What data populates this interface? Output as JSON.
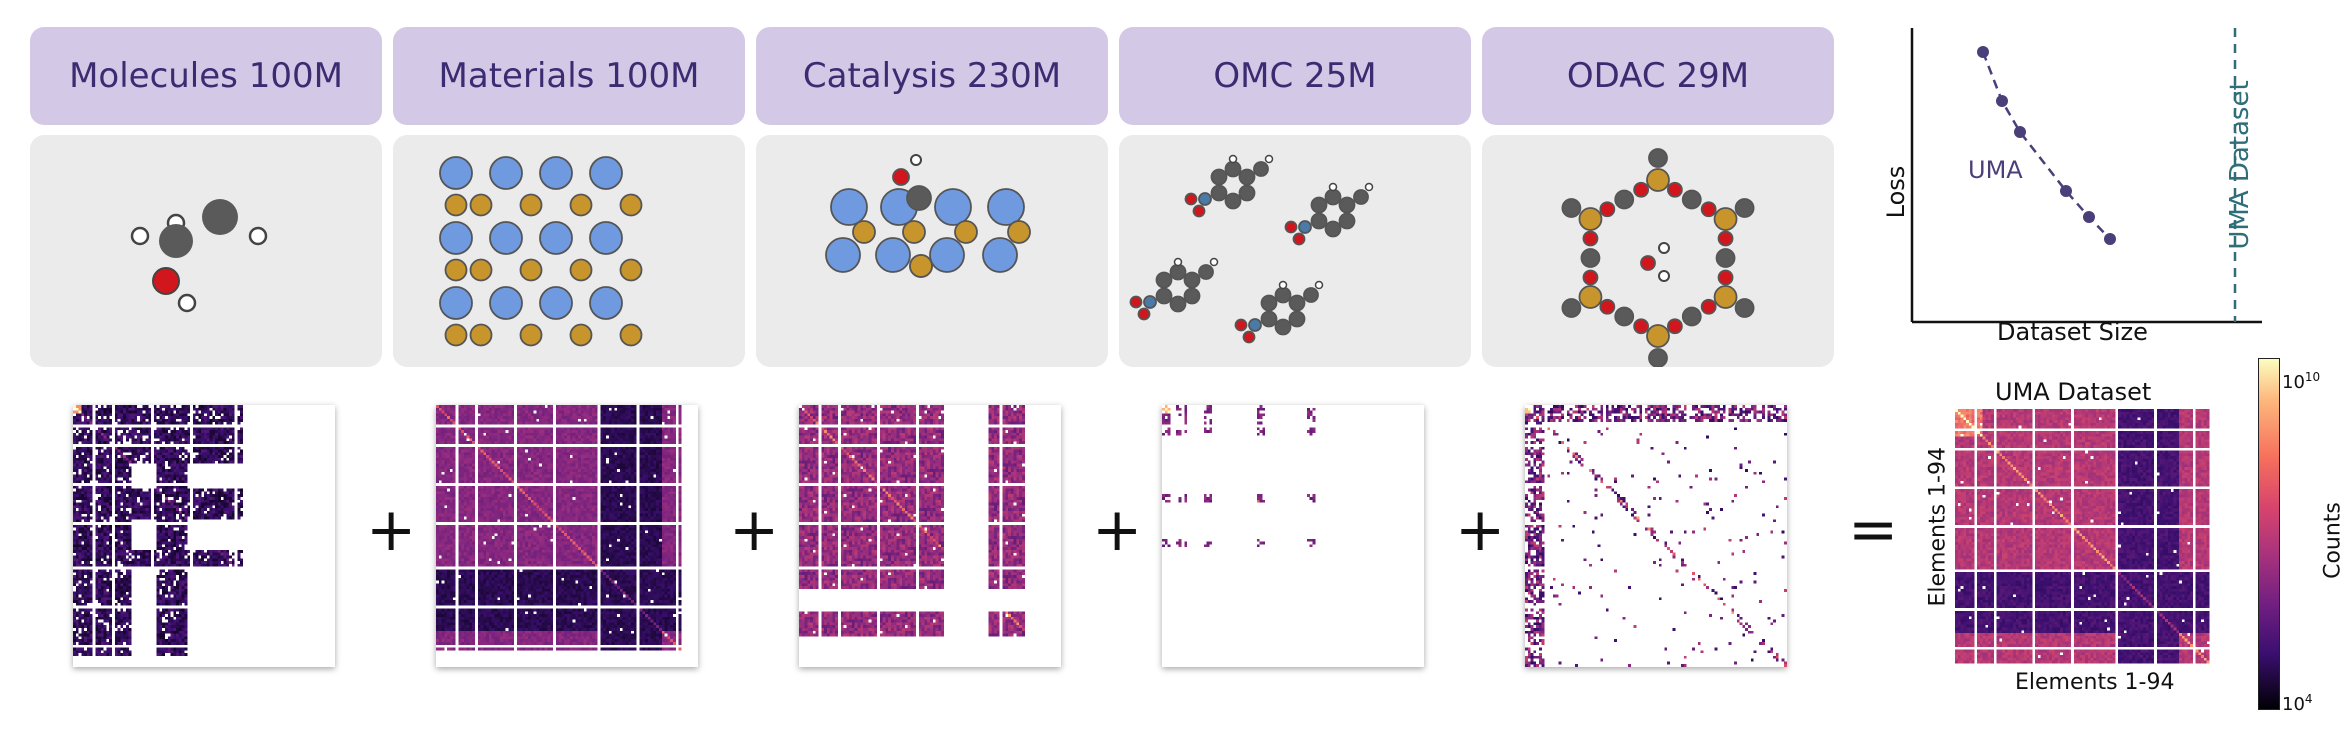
{
  "datasets": [
    {
      "label": "Molecules 100M"
    },
    {
      "label": "Materials 100M"
    },
    {
      "label": "Catalysis 230M"
    },
    {
      "label": "OMC 25M"
    },
    {
      "label": "ODAC 29M"
    }
  ],
  "operators": {
    "plus": "+",
    "equals": "="
  },
  "loss_plot": {
    "ylabel": "Loss",
    "xlabel": "Dataset Size",
    "series_label": "UMA",
    "vline_label": "UMA Dataset",
    "colors": {
      "series": "#4b3f7a",
      "vline": "#2f6e78"
    }
  },
  "uma_matrix": {
    "title": "UMA Dataset",
    "xlabel": "Elements 1-94",
    "ylabel": "Elements 1-94"
  },
  "colorbar": {
    "label": "Counts",
    "max_label": "10",
    "max_exp": "10",
    "min_label": "10",
    "min_exp": "4"
  },
  "colors": {
    "header_bg": "#d3c9e6",
    "panel_bg": "#ebebeb",
    "atom_blue": "#6f9ae0",
    "atom_gold": "#c7952b",
    "atom_gray": "#5a5a5a",
    "atom_red": "#d2161d",
    "heat_dark": "#1a0a33",
    "heat_mid": "#7c2a7e",
    "heat_hot": "#e1506b"
  }
}
